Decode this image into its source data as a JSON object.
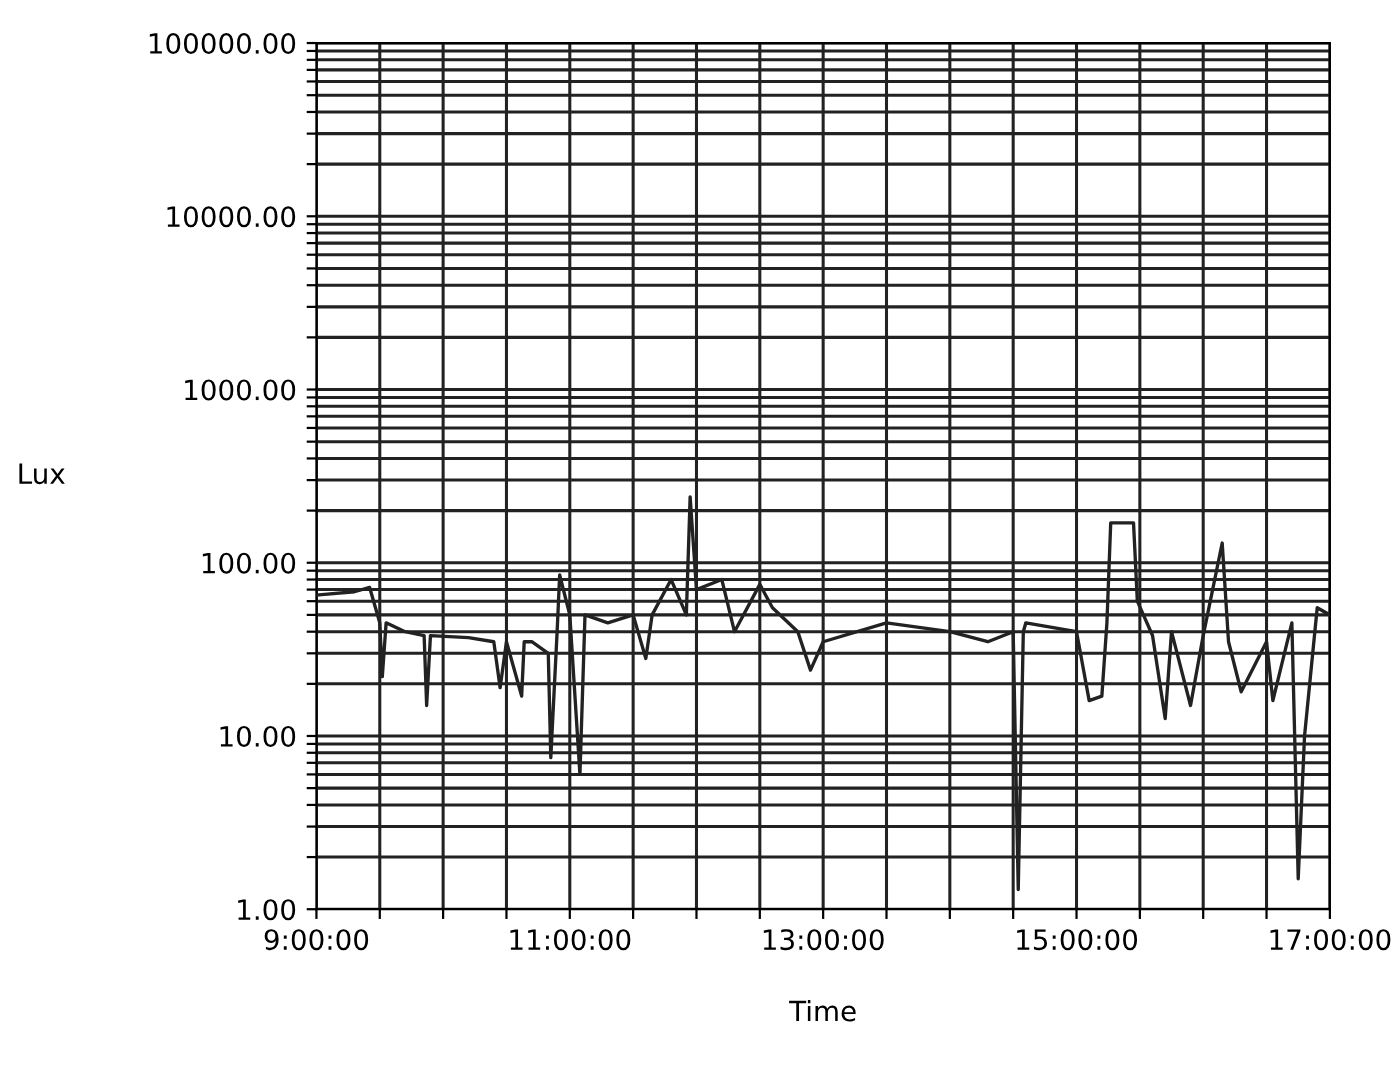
{
  "chart_data": {
    "type": "line",
    "xlabel": "Time",
    "ylabel": "Lux",
    "log": "y",
    "grid": true,
    "legend": false,
    "marker": "none",
    "line_style": "solid",
    "xlim": [
      9,
      17
    ],
    "ylim": [
      1,
      100000
    ],
    "xticks": [
      {
        "value": 9,
        "label": "9:00:00"
      },
      {
        "value": 9.5,
        "label": null
      },
      {
        "value": 10,
        "label": null
      },
      {
        "value": 10.5,
        "label": null
      },
      {
        "value": 11,
        "label": "11:00:00"
      },
      {
        "value": 11.5,
        "label": null
      },
      {
        "value": 12,
        "label": null
      },
      {
        "value": 12.5,
        "label": null
      },
      {
        "value": 13,
        "label": "13:00:00"
      },
      {
        "value": 13.5,
        "label": null
      },
      {
        "value": 14,
        "label": null
      },
      {
        "value": 14.5,
        "label": null
      },
      {
        "value": 15,
        "label": "15:00:00"
      },
      {
        "value": 15.5,
        "label": null
      },
      {
        "value": 16,
        "label": null
      },
      {
        "value": 16.5,
        "label": null
      },
      {
        "value": 17,
        "label": "17:00:00"
      }
    ],
    "yticks": [
      {
        "value": 1,
        "label": "1.00"
      },
      {
        "value": 2,
        "label": null
      },
      {
        "value": 3,
        "label": null
      },
      {
        "value": 4,
        "label": null
      },
      {
        "value": 5,
        "label": null
      },
      {
        "value": 6,
        "label": null
      },
      {
        "value": 7,
        "label": null
      },
      {
        "value": 8,
        "label": null
      },
      {
        "value": 9,
        "label": null
      },
      {
        "value": 10,
        "label": "10.00"
      },
      {
        "value": 20,
        "label": null
      },
      {
        "value": 30,
        "label": null
      },
      {
        "value": 40,
        "label": null
      },
      {
        "value": 50,
        "label": null
      },
      {
        "value": 60,
        "label": null
      },
      {
        "value": 70,
        "label": null
      },
      {
        "value": 80,
        "label": null
      },
      {
        "value": 90,
        "label": null
      },
      {
        "value": 100,
        "label": "100.00"
      },
      {
        "value": 200,
        "label": null
      },
      {
        "value": 300,
        "label": null
      },
      {
        "value": 400,
        "label": null
      },
      {
        "value": 500,
        "label": null
      },
      {
        "value": 600,
        "label": null
      },
      {
        "value": 700,
        "label": null
      },
      {
        "value": 800,
        "label": null
      },
      {
        "value": 900,
        "label": null
      },
      {
        "value": 1000,
        "label": "1000.00"
      },
      {
        "value": 2000,
        "label": null
      },
      {
        "value": 3000,
        "label": null
      },
      {
        "value": 4000,
        "label": null
      },
      {
        "value": 5000,
        "label": null
      },
      {
        "value": 6000,
        "label": null
      },
      {
        "value": 7000,
        "label": null
      },
      {
        "value": 8000,
        "label": null
      },
      {
        "value": 9000,
        "label": null
      },
      {
        "value": 10000,
        "label": "10000.00"
      },
      {
        "value": 20000,
        "label": null
      },
      {
        "value": 30000,
        "label": null
      },
      {
        "value": 40000,
        "label": null
      },
      {
        "value": 50000,
        "label": null
      },
      {
        "value": 60000,
        "label": null
      },
      {
        "value": 70000,
        "label": null
      },
      {
        "value": 80000,
        "label": null
      },
      {
        "value": 90000,
        "label": null
      },
      {
        "value": 100000,
        "label": "100000.00"
      }
    ],
    "series": [
      {
        "color": "#222222",
        "x": [
          9.0,
          9.3,
          9.42,
          9.5,
          9.52,
          9.55,
          9.7,
          9.85,
          9.87,
          9.9,
          10.2,
          10.4,
          10.45,
          10.5,
          10.62,
          10.64,
          10.7,
          10.83,
          10.85,
          10.9,
          10.92,
          11.0,
          11.08,
          11.12,
          11.3,
          11.5,
          11.6,
          11.65,
          11.8,
          11.92,
          11.95,
          12.0,
          12.2,
          12.3,
          12.5,
          12.6,
          12.8,
          12.9,
          13.0,
          13.5,
          14.0,
          14.3,
          14.5,
          14.54,
          14.58,
          14.6,
          15.0,
          15.1,
          15.2,
          15.24,
          15.27,
          15.45,
          15.48,
          15.6,
          15.7,
          15.75,
          15.9,
          16.0,
          16.15,
          16.2,
          16.3,
          16.5,
          16.55,
          16.7,
          16.75,
          16.8,
          16.9,
          17.0
        ],
        "values": [
          65,
          68,
          72,
          45,
          22,
          45,
          40,
          38,
          15,
          38,
          37,
          35,
          19,
          35,
          17,
          35,
          35,
          30,
          7.5,
          40,
          85,
          50,
          6,
          50,
          45,
          50,
          28,
          50,
          80,
          50,
          240,
          70,
          80,
          40,
          75,
          55,
          40,
          24,
          35,
          45,
          40,
          35,
          40,
          1.3,
          40,
          45,
          40,
          16,
          17,
          45,
          170,
          170,
          60,
          38,
          12.6,
          40,
          15,
          38,
          130,
          35,
          18,
          35,
          16,
          45,
          1.5,
          10,
          55,
          50
        ]
      }
    ]
  }
}
